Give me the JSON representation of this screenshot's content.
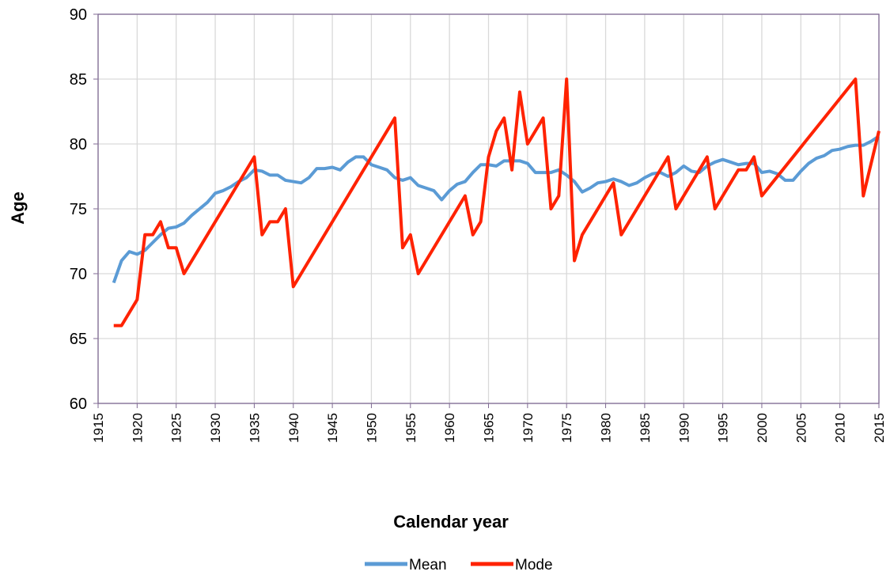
{
  "chart_data": {
    "type": "line",
    "x_label": "Calendar year",
    "y_label": "Age",
    "xlim": [
      1915,
      2015
    ],
    "xticks": [
      1915,
      1920,
      1925,
      1930,
      1935,
      1940,
      1945,
      1950,
      1955,
      1960,
      1965,
      1970,
      1975,
      1980,
      1985,
      1990,
      1995,
      2000,
      2005,
      2010,
      2015
    ],
    "ylim": [
      60,
      90
    ],
    "yticks": [
      60,
      65,
      70,
      75,
      80,
      85,
      90
    ],
    "grid": true,
    "legend": "bottom",
    "series": [
      {
        "name": "Mean",
        "color": "#5b9bd5",
        "x": [
          1917,
          1918,
          1919,
          1920,
          1921,
          1922,
          1923,
          1924,
          1925,
          1926,
          1927,
          1928,
          1929,
          1930,
          1931,
          1932,
          1933,
          1934,
          1935,
          1936,
          1937,
          1938,
          1939,
          1940,
          1941,
          1942,
          1943,
          1944,
          1945,
          1946,
          1947,
          1948,
          1949,
          1950,
          1951,
          1952,
          1953,
          1954,
          1955,
          1956,
          1957,
          1958,
          1959,
          1960,
          1961,
          1962,
          1963,
          1964,
          1965,
          1966,
          1967,
          1968,
          1969,
          1970,
          1971,
          1972,
          1973,
          1974,
          1975,
          1976,
          1977,
          1978,
          1979,
          1980,
          1981,
          1982,
          1983,
          1984,
          1985,
          1986,
          1987,
          1988,
          1989,
          1990,
          1991,
          1992,
          1993,
          1994,
          1995,
          1996,
          1997,
          1998,
          1999,
          2000,
          2001,
          2002,
          2003,
          2004,
          2005,
          2006,
          2007,
          2008,
          2009,
          2010,
          2011,
          2012,
          2013,
          2014,
          2015
        ],
        "values": [
          69.3,
          71,
          71.7,
          71.5,
          71.8,
          72.4,
          73,
          73.5,
          73.6,
          73.9,
          74.5,
          75,
          75.5,
          76.2,
          76.4,
          76.7,
          77.1,
          77.4,
          78,
          77.9,
          77.6,
          77.6,
          77.2,
          77.1,
          77,
          77.4,
          78.1,
          78.1,
          78.2,
          78,
          78.6,
          79,
          79,
          78.4,
          78.2,
          78,
          77.4,
          77.2,
          77.4,
          76.8,
          76.6,
          76.4,
          75.7,
          76.4,
          76.9,
          77.1,
          77.8,
          78.4,
          78.4,
          78.3,
          78.7,
          78.7,
          78.7,
          78.5,
          77.8,
          77.8,
          77.8,
          78,
          77.6,
          77.1,
          76.3,
          76.6,
          77,
          77.1,
          77.3,
          77.1,
          76.8,
          77,
          77.4,
          77.7,
          77.8,
          77.5,
          77.8,
          78.3,
          77.9,
          77.8,
          78.3,
          78.6,
          78.8,
          78.6,
          78.4,
          78.5,
          78.5,
          77.8,
          77.9,
          77.7,
          77.2,
          77.2,
          77.9,
          78.5,
          78.9,
          79.1,
          79.5,
          79.6,
          79.8,
          79.9,
          79.9,
          80.2,
          80.6
        ]
      },
      {
        "name": "Mode",
        "color": "#ff2200",
        "x": [
          1917,
          1918,
          1920,
          1921,
          1922,
          1923,
          1924,
          1925,
          1926,
          1935,
          1936,
          1937,
          1938,
          1939,
          1940,
          1953,
          1954,
          1955,
          1956,
          1962,
          1963,
          1964,
          1965,
          1966,
          1967,
          1968,
          1969,
          1970,
          1972,
          1973,
          1974,
          1975,
          1976,
          1977,
          1981,
          1982,
          1988,
          1989,
          1993,
          1994,
          1997,
          1998,
          1999,
          2000,
          2012,
          2013,
          2015
        ],
        "values": [
          66,
          66,
          68,
          73,
          73,
          74,
          72,
          72,
          70,
          79,
          73,
          74,
          74,
          75,
          69,
          82,
          72,
          73,
          70,
          76,
          73,
          74,
          79,
          81,
          82,
          78,
          84,
          80,
          82,
          75,
          76,
          85,
          71,
          73,
          77,
          73,
          79,
          75,
          79,
          75,
          78,
          78,
          79,
          76,
          85,
          76,
          81
        ]
      }
    ]
  }
}
